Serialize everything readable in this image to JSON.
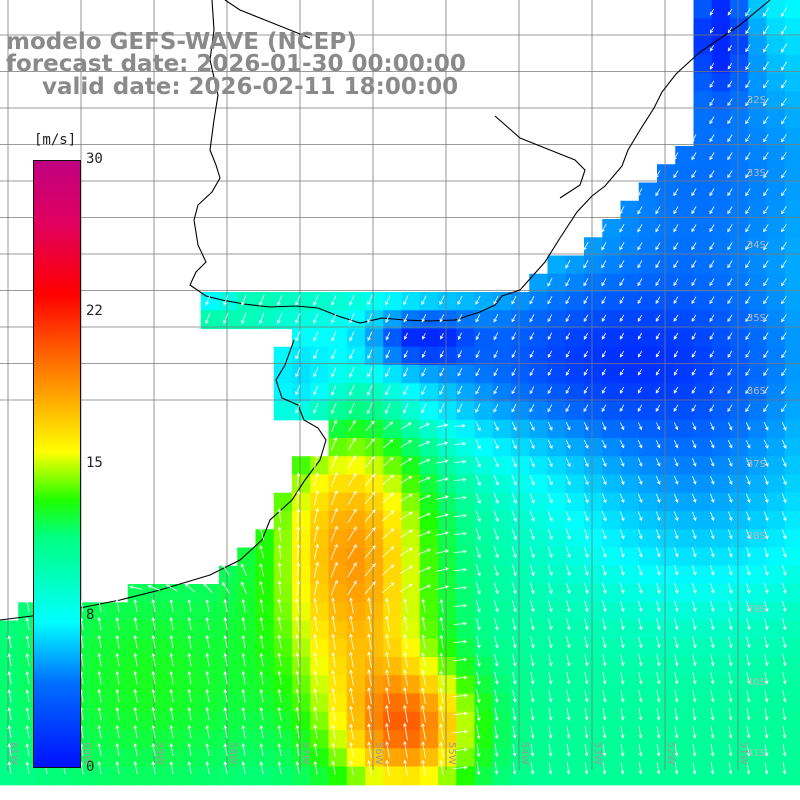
{
  "header": {
    "model_line": "modelo GEFS-WAVE (NCEP)",
    "forecast_line": "forecast date: 2026-01-30 00:00:00",
    "valid_line": "valid date: 2026-02-11 18:00:00"
  },
  "colorbar": {
    "unit": "[m/s]",
    "ticks": [
      {
        "value": 30,
        "label": "30"
      },
      {
        "value": 22,
        "label": "22"
      },
      {
        "value": 15,
        "label": "15"
      },
      {
        "value": 8,
        "label": "8"
      },
      {
        "value": 0,
        "label": "0"
      }
    ],
    "stops": [
      {
        "value": 0,
        "color": "#0010ff"
      },
      {
        "value": 4,
        "color": "#0070ff"
      },
      {
        "value": 8,
        "color": "#00ffff"
      },
      {
        "value": 11,
        "color": "#00ff80"
      },
      {
        "value": 13,
        "color": "#20ff00"
      },
      {
        "value": 15.5,
        "color": "#ffff00"
      },
      {
        "value": 18,
        "color": "#ffb000"
      },
      {
        "value": 21,
        "color": "#ff5000"
      },
      {
        "value": 23.5,
        "color": "#ff0000"
      },
      {
        "value": 27,
        "color": "#e00060"
      },
      {
        "value": 30,
        "color": "#c00080"
      }
    ]
  },
  "map": {
    "lat_labels": [
      "32S",
      "33S",
      "34S",
      "35S",
      "36S",
      "37S",
      "38S",
      "39S",
      "40S",
      "41S"
    ],
    "lon_labels": [
      "61W",
      "60W",
      "59W",
      "58W",
      "57W",
      "56W",
      "55W",
      "54W",
      "53W",
      "52W",
      "51W"
    ],
    "colors": {
      "grid": "#7a7a7a",
      "coast": "#000000",
      "arrow": "#ffffff",
      "land": "#ffffff"
    }
  }
}
